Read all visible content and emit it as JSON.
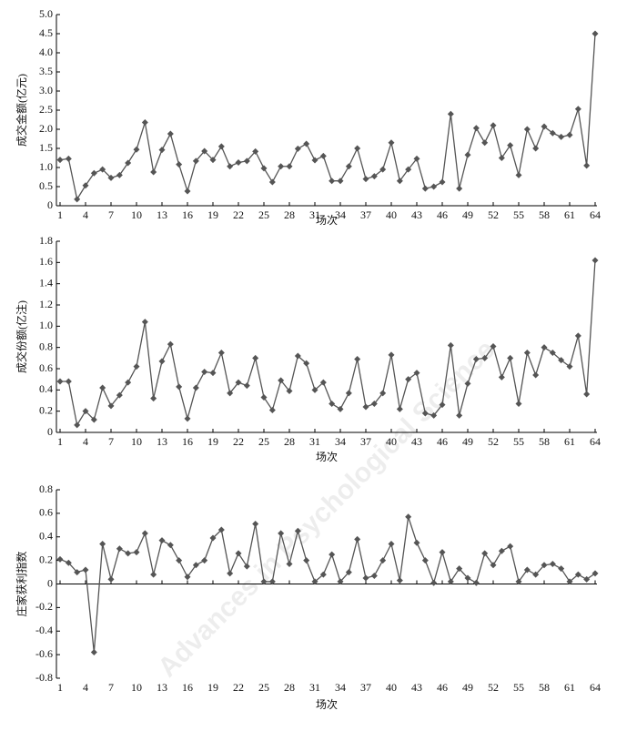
{
  "watermark": "Advances in Psychological Science",
  "chart_data": [
    {
      "type": "line",
      "ylabel": "成交金额(亿元)",
      "xlabel": "场次",
      "color": "#555555",
      "marker": "diamond",
      "grid": false,
      "x": [
        1,
        2,
        3,
        4,
        5,
        6,
        7,
        8,
        9,
        10,
        11,
        12,
        13,
        14,
        15,
        16,
        17,
        18,
        19,
        20,
        21,
        22,
        23,
        24,
        25,
        26,
        27,
        28,
        29,
        30,
        31,
        32,
        33,
        34,
        35,
        36,
        37,
        38,
        39,
        40,
        41,
        42,
        43,
        44,
        45,
        46,
        47,
        48,
        49,
        50,
        51,
        52,
        53,
        54,
        55,
        56,
        57,
        58,
        59,
        60,
        61,
        62,
        63,
        64
      ],
      "values": [
        1.2,
        1.23,
        0.17,
        0.53,
        0.85,
        0.95,
        0.73,
        0.8,
        1.12,
        1.47,
        2.18,
        0.88,
        1.46,
        1.88,
        1.08,
        0.38,
        1.17,
        1.43,
        1.2,
        1.55,
        1.03,
        1.13,
        1.17,
        1.42,
        0.98,
        0.62,
        1.03,
        1.03,
        1.49,
        1.62,
        1.19,
        1.3,
        0.65,
        0.65,
        1.03,
        1.5,
        0.7,
        0.77,
        0.95,
        1.65,
        0.65,
        0.95,
        1.23,
        0.45,
        0.5,
        0.62,
        2.4,
        0.45,
        1.33,
        2.03,
        1.65,
        2.1,
        1.25,
        1.58,
        0.8,
        2.0,
        1.5,
        2.07,
        1.9,
        1.8,
        1.85,
        2.53,
        1.05,
        4.5
      ],
      "xlim": [
        1,
        64
      ],
      "xticks": [
        1,
        4,
        7,
        10,
        13,
        16,
        19,
        22,
        25,
        28,
        31,
        34,
        37,
        40,
        43,
        46,
        49,
        52,
        55,
        58,
        61,
        64
      ],
      "ylim": [
        0,
        5
      ],
      "yticks": [
        0,
        {
          "value": 0.5,
          "label": "0.5"
        },
        {
          "value": 1,
          "label": "1.0"
        },
        {
          "value": 1.5,
          "label": "1.5"
        },
        {
          "value": 2,
          "label": "2.0"
        },
        {
          "value": 2.5,
          "label": "2.5"
        },
        {
          "value": 3,
          "label": "3.0"
        },
        {
          "value": 3.5,
          "label": "3.5"
        },
        {
          "value": 4,
          "label": "4.0"
        },
        {
          "value": 4.5,
          "label": "4.5"
        },
        {
          "value": 5,
          "label": "5.0"
        }
      ]
    },
    {
      "type": "line",
      "ylabel": "成交份额(亿注)",
      "xlabel": "场次",
      "color": "#555555",
      "marker": "diamond",
      "grid": false,
      "x": [
        1,
        2,
        3,
        4,
        5,
        6,
        7,
        8,
        9,
        10,
        11,
        12,
        13,
        14,
        15,
        16,
        17,
        18,
        19,
        20,
        21,
        22,
        23,
        24,
        25,
        26,
        27,
        28,
        29,
        30,
        31,
        32,
        33,
        34,
        35,
        36,
        37,
        38,
        39,
        40,
        41,
        42,
        43,
        44,
        45,
        46,
        47,
        48,
        49,
        50,
        51,
        52,
        53,
        54,
        55,
        56,
        57,
        58,
        59,
        60,
        61,
        62,
        63,
        64
      ],
      "values": [
        0.48,
        0.48,
        0.07,
        0.2,
        0.12,
        0.42,
        0.25,
        0.35,
        0.47,
        0.62,
        1.04,
        0.32,
        0.67,
        0.83,
        0.43,
        0.13,
        0.42,
        0.57,
        0.56,
        0.75,
        0.37,
        0.47,
        0.44,
        0.7,
        0.33,
        0.21,
        0.49,
        0.39,
        0.72,
        0.65,
        0.4,
        0.47,
        0.27,
        0.22,
        0.37,
        0.69,
        0.24,
        0.27,
        0.37,
        0.73,
        0.22,
        0.5,
        0.56,
        0.18,
        0.16,
        0.26,
        0.82,
        0.16,
        0.46,
        0.69,
        0.7,
        0.81,
        0.52,
        0.7,
        0.27,
        0.75,
        0.54,
        0.8,
        0.75,
        0.68,
        0.62,
        0.91,
        0.36,
        1.62
      ],
      "xlim": [
        1,
        64
      ],
      "xticks": [
        1,
        4,
        7,
        10,
        13,
        16,
        19,
        22,
        25,
        28,
        31,
        34,
        37,
        40,
        43,
        46,
        49,
        52,
        55,
        58,
        61,
        64
      ],
      "ylim": [
        0,
        1.8
      ],
      "yticks": [
        0,
        0.2,
        0.4,
        0.6,
        0.8,
        {
          "value": 1,
          "label": "1.0"
        },
        1.2,
        1.4,
        1.6,
        1.8
      ]
    },
    {
      "type": "line",
      "ylabel": "庄家获利指数",
      "xlabel": "场次",
      "color": "#555555",
      "marker": "diamond",
      "grid": false,
      "x_axis_at_zero": true,
      "x": [
        1,
        2,
        3,
        4,
        5,
        6,
        7,
        8,
        9,
        10,
        11,
        12,
        13,
        14,
        15,
        16,
        17,
        18,
        19,
        20,
        21,
        22,
        23,
        24,
        25,
        26,
        27,
        28,
        29,
        30,
        31,
        32,
        33,
        34,
        35,
        36,
        37,
        38,
        39,
        40,
        41,
        42,
        43,
        44,
        45,
        46,
        47,
        48,
        49,
        50,
        51,
        52,
        53,
        54,
        55,
        56,
        57,
        58,
        59,
        60,
        61,
        62,
        63,
        64
      ],
      "values": [
        0.21,
        0.18,
        0.1,
        0.12,
        -0.58,
        0.34,
        0.04,
        0.3,
        0.26,
        0.27,
        0.43,
        0.08,
        0.37,
        0.33,
        0.2,
        0.06,
        0.16,
        0.2,
        0.39,
        0.46,
        0.09,
        0.26,
        0.15,
        0.51,
        0.02,
        0.02,
        0.43,
        0.17,
        0.45,
        0.2,
        0.02,
        0.08,
        0.25,
        0.02,
        0.1,
        0.38,
        0.05,
        0.07,
        0.2,
        0.34,
        0.03,
        0.57,
        0.35,
        0.2,
        0.01,
        0.27,
        0.02,
        0.13,
        0.05,
        0.01,
        0.26,
        0.16,
        0.28,
        0.32,
        0.02,
        0.12,
        0.08,
        0.16,
        0.17,
        0.13,
        0.02,
        0.08,
        0.04,
        0.09
      ],
      "xlim": [
        1,
        64
      ],
      "xticks": [
        1,
        4,
        7,
        10,
        13,
        16,
        19,
        22,
        25,
        28,
        31,
        34,
        37,
        40,
        43,
        46,
        49,
        52,
        55,
        58,
        61,
        64
      ],
      "ylim": [
        -0.8,
        0.8
      ],
      "yticks": [
        -0.8,
        -0.6,
        -0.4,
        -0.2,
        0,
        0.2,
        0.4,
        0.6,
        0.8
      ]
    }
  ]
}
